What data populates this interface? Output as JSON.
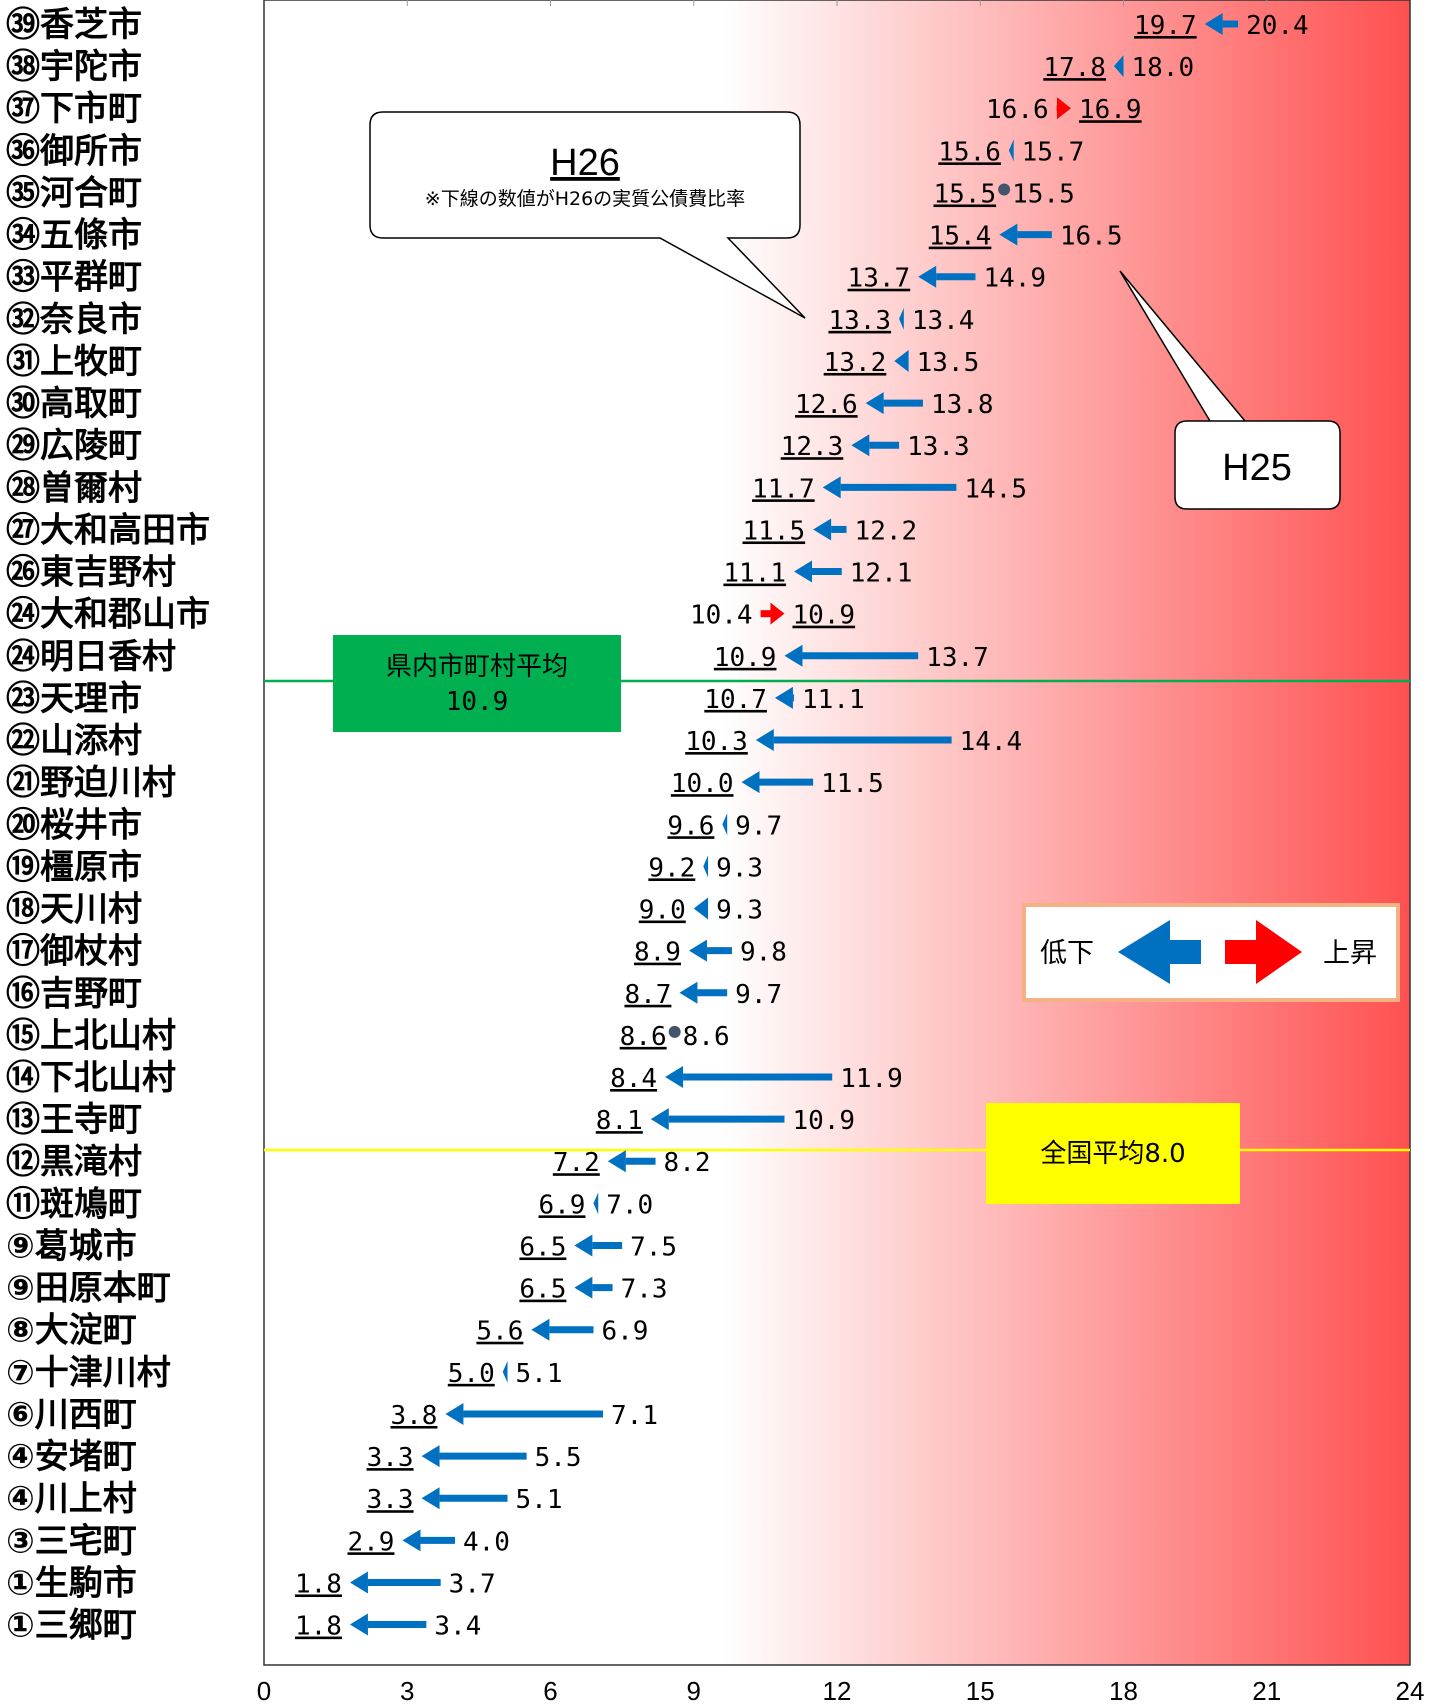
{
  "chart_data": {
    "type": "dumbbell",
    "xlim": [
      0,
      24
    ],
    "x_ticks": [
      "0",
      "3",
      "6",
      "9",
      "12",
      "15",
      "18",
      "21",
      "24"
    ],
    "rows": [
      {
        "label": "㊴香芝市",
        "h26": "19.7",
        "h25": "20.4",
        "v26": 19.7,
        "v25": 20.4
      },
      {
        "label": "㊳宇陀市",
        "h26": "17.8",
        "h25": "18.0",
        "v26": 17.8,
        "v25": 18.0
      },
      {
        "label": "㊲下市町",
        "h26": "16.9",
        "h25": "16.6",
        "v26": 16.9,
        "v25": 16.6
      },
      {
        "label": "㊱御所市",
        "h26": "15.6",
        "h25": "15.7",
        "v26": 15.6,
        "v25": 15.7
      },
      {
        "label": "㉟河合町",
        "h26": "15.5",
        "h25": "15.5",
        "v26": 15.5,
        "v25": 15.5
      },
      {
        "label": "㉞五條市",
        "h26": "15.4",
        "h25": "16.5",
        "v26": 15.4,
        "v25": 16.5
      },
      {
        "label": "㉝平群町",
        "h26": "13.7",
        "h25": "14.9",
        "v26": 13.7,
        "v25": 14.9
      },
      {
        "label": "㉜奈良市",
        "h26": "13.3",
        "h25": "13.4",
        "v26": 13.3,
        "v25": 13.4
      },
      {
        "label": "㉛上牧町",
        "h26": "13.2",
        "h25": "13.5",
        "v26": 13.2,
        "v25": 13.5
      },
      {
        "label": "㉚高取町",
        "h26": "12.6",
        "h25": "13.8",
        "v26": 12.6,
        "v25": 13.8
      },
      {
        "label": "㉙広陵町",
        "h26": "12.3",
        "h25": "13.3",
        "v26": 12.3,
        "v25": 13.3
      },
      {
        "label": "㉘曽爾村",
        "h26": "11.7",
        "h25": "14.5",
        "v26": 11.7,
        "v25": 14.5
      },
      {
        "label": "㉗大和高田市",
        "h26": "11.5",
        "h25": "12.2",
        "v26": 11.5,
        "v25": 12.2
      },
      {
        "label": "㉖東吉野村",
        "h26": "11.1",
        "h25": "12.1",
        "v26": 11.1,
        "v25": 12.1
      },
      {
        "label": "㉔大和郡山市",
        "h26": "10.9",
        "h25": "10.4",
        "v26": 10.9,
        "v25": 10.4
      },
      {
        "label": "㉔明日香村",
        "h26": "10.9",
        "h25": "13.7",
        "v26": 10.9,
        "v25": 13.7
      },
      {
        "label": "㉓天理市",
        "h26": "10.7",
        "h25": "11.1",
        "v26": 10.7,
        "v25": 11.1
      },
      {
        "label": "㉒山添村",
        "h26": "10.3",
        "h25": "14.4",
        "v26": 10.3,
        "v25": 14.4
      },
      {
        "label": "㉑野迫川村",
        "h26": "10.0",
        "h25": "11.5",
        "v26": 10.0,
        "v25": 11.5
      },
      {
        "label": "⑳桜井市",
        "h26": "9.6",
        "h25": "9.7",
        "v26": 9.6,
        "v25": 9.7
      },
      {
        "label": "⑲橿原市",
        "h26": "9.2",
        "h25": "9.3",
        "v26": 9.2,
        "v25": 9.3
      },
      {
        "label": "⑱天川村",
        "h26": "9.0",
        "h25": "9.3",
        "v26": 9.0,
        "v25": 9.3
      },
      {
        "label": "⑰御杖村",
        "h26": "8.9",
        "h25": "9.8",
        "v26": 8.9,
        "v25": 9.8
      },
      {
        "label": "⑯吉野町",
        "h26": "8.7",
        "h25": "9.7",
        "v26": 8.7,
        "v25": 9.7
      },
      {
        "label": "⑮上北山村",
        "h26": "8.6",
        "h25": "8.6",
        "v26": 8.6,
        "v25": 8.6
      },
      {
        "label": "⑭下北山村",
        "h26": "8.4",
        "h25": "11.9",
        "v26": 8.4,
        "v25": 11.9
      },
      {
        "label": "⑬王寺町",
        "h26": "8.1",
        "h25": "10.9",
        "v26": 8.1,
        "v25": 10.9
      },
      {
        "label": "⑫黒滝村",
        "h26": "7.2",
        "h25": "8.2",
        "v26": 7.2,
        "v25": 8.2
      },
      {
        "label": "⑪斑鳩町",
        "h26": "6.9",
        "h25": "7.0",
        "v26": 6.9,
        "v25": 7.0
      },
      {
        "label": "⑨葛城市",
        "h26": "6.5",
        "h25": "7.5",
        "v26": 6.5,
        "v25": 7.5
      },
      {
        "label": "⑨田原本町",
        "h26": "6.5",
        "h25": "7.3",
        "v26": 6.5,
        "v25": 7.3
      },
      {
        "label": "⑧大淀町",
        "h26": "5.6",
        "h25": "6.9",
        "v26": 5.6,
        "v25": 6.9
      },
      {
        "label": "⑦十津川村",
        "h26": "5.0",
        "h25": "5.1",
        "v26": 5.0,
        "v25": 5.1
      },
      {
        "label": "⑥川西町",
        "h26": "3.8",
        "h25": "7.1",
        "v26": 3.8,
        "v25": 7.1
      },
      {
        "label": "④安堵町",
        "h26": "3.3",
        "h25": "5.5",
        "v26": 3.3,
        "v25": 5.5
      },
      {
        "label": "④川上村",
        "h26": "3.3",
        "h25": "5.1",
        "v26": 3.3,
        "v25": 5.1
      },
      {
        "label": "③三宅町",
        "h26": "2.9",
        "h25": "4.0",
        "v26": 2.9,
        "v25": 4.0
      },
      {
        "label": "①生駒市",
        "h26": "1.8",
        "h25": "3.7",
        "v26": 1.8,
        "v25": 3.7
      },
      {
        "label": "①三郷町",
        "h26": "1.8",
        "h25": "3.4",
        "v26": 1.8,
        "v25": 3.4
      }
    ],
    "reference_lines": [
      {
        "name": "県内市町村平均",
        "value_text": "10.9",
        "value": 10.9,
        "color": "#00b050",
        "box_line1": "県内市町村平均",
        "box_line2": "10.9"
      },
      {
        "name": "全国平均",
        "value_text": "8.0",
        "value": 8.0,
        "color": "#ffff00",
        "box_line1": "全国平均8.0"
      }
    ],
    "callouts": {
      "h26_title": "H26",
      "h26_note": "※下線の数値がH26の実質公債費比率",
      "h25_title": "H25"
    },
    "legend": {
      "decrease": "低下",
      "increase": "上昇"
    },
    "colors": {
      "decrease": "#0070c0",
      "increase": "#ff0000",
      "same": "#44546a",
      "gradient_end": "#ff5050"
    }
  }
}
